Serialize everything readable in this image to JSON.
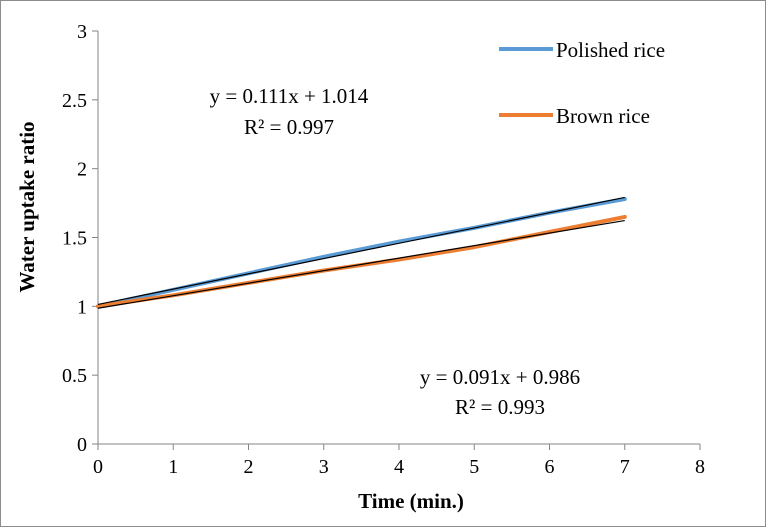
{
  "chart_data": {
    "type": "line",
    "title": "",
    "xlabel": "Time (min.)",
    "ylabel": "Water uptake ratio",
    "xlim": [
      0,
      8
    ],
    "ylim": [
      0,
      3
    ],
    "x_ticks": [
      0,
      1,
      2,
      3,
      4,
      5,
      6,
      7,
      8
    ],
    "y_ticks": [
      0,
      0.5,
      1,
      1.5,
      2,
      2.5,
      3
    ],
    "x_tick_labels": [
      "0",
      "1",
      "2",
      "3",
      "4",
      "5",
      "6",
      "7",
      "8"
    ],
    "y_tick_labels": [
      "0",
      "0.5",
      "1",
      "1.5",
      "2",
      "2.5",
      "3"
    ],
    "grid": false,
    "legend_position": "top-right",
    "series": [
      {
        "name": "Polished rice",
        "color": "#5b9bd5",
        "x": [
          0,
          1,
          2,
          3,
          4,
          5,
          6,
          7
        ],
        "y": [
          1.0,
          1.12,
          1.24,
          1.36,
          1.47,
          1.57,
          1.68,
          1.78
        ]
      },
      {
        "name": "Brown rice",
        "color": "#ed7d31",
        "x": [
          0,
          1,
          2,
          3,
          4,
          5,
          6,
          7
        ],
        "y": [
          1.0,
          1.08,
          1.17,
          1.26,
          1.34,
          1.43,
          1.54,
          1.65
        ]
      }
    ],
    "trendlines": [
      {
        "series": "Polished rice",
        "slope": 0.111,
        "intercept": 1.014,
        "x_range": [
          0,
          7
        ],
        "color": "#000000"
      },
      {
        "series": "Brown rice",
        "slope": 0.091,
        "intercept": 0.986,
        "x_range": [
          0,
          7
        ],
        "color": "#000000"
      }
    ],
    "annotations": [
      {
        "id": "eq-polished",
        "equation": "y = 0.111x + 1.014",
        "r2": "R² = 0.997"
      },
      {
        "id": "eq-brown",
        "equation": "y = 0.091x + 0.986",
        "r2": "R² = 0.993"
      }
    ]
  }
}
